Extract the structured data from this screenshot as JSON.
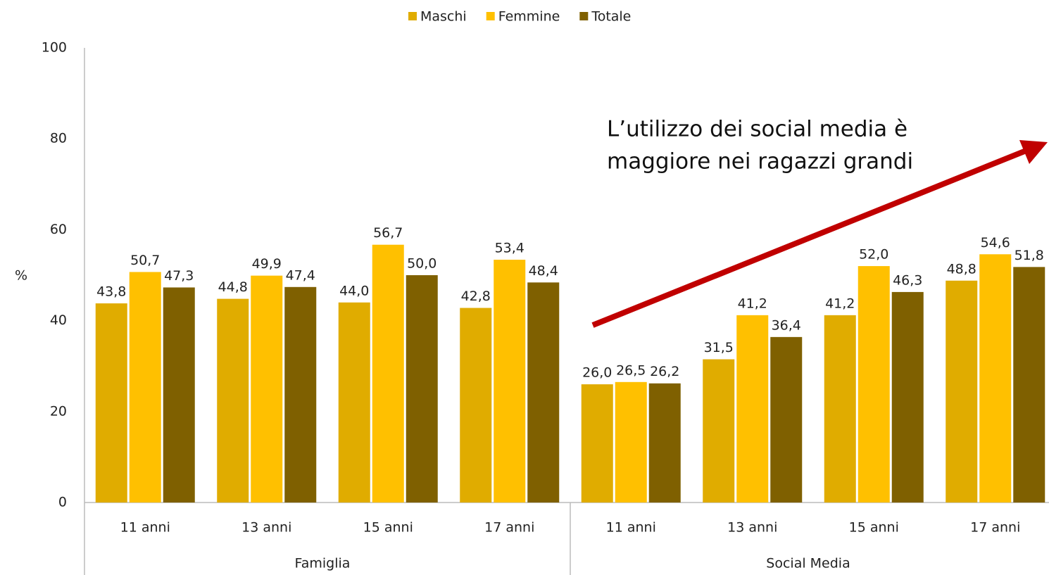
{
  "chart_data": {
    "type": "bar",
    "categories": [
      "11 anni",
      "13 anni",
      "15 anni",
      "17 anni",
      "11 anni",
      "13 anni",
      "15 anni",
      "17 anni"
    ],
    "group_labels": [
      "Famiglia",
      "Social Media"
    ],
    "y_label": "%",
    "series": [
      {
        "name": "Maschi",
        "color": "#E0AC00",
        "values": [
          43.8,
          44.8,
          44.0,
          42.8,
          26.0,
          31.5,
          41.2,
          48.8
        ],
        "value_labels": [
          "43,8",
          "44,8",
          "44,0",
          "42,8",
          "26,0",
          "31,5",
          "41,2",
          "48,8"
        ]
      },
      {
        "name": "Femmine",
        "color": "#FFC000",
        "values": [
          50.7,
          49.9,
          56.7,
          53.4,
          26.5,
          41.2,
          52.0,
          54.6
        ],
        "value_labels": [
          "50,7",
          "49,9",
          "56,7",
          "53,4",
          "26,5",
          "41,2",
          "52,0",
          "54,6"
        ]
      },
      {
        "name": "Totale",
        "color": "#7F6000",
        "values": [
          47.3,
          47.4,
          50.0,
          48.4,
          26.2,
          36.4,
          46.3,
          51.8
        ],
        "value_labels": [
          "47,3",
          "47,4",
          "50,0",
          "48,4",
          "26,2",
          "36,4",
          "46,3",
          "51,8"
        ]
      }
    ],
    "ylim": [
      0,
      100
    ],
    "yticks": [
      0,
      20,
      40,
      60,
      80,
      100
    ],
    "grid": false,
    "legend": "top",
    "annotation": {
      "lines": [
        "L’utilizzo dei social media è",
        "maggiore nei ragazzi grandi"
      ],
      "color": "#C00000"
    }
  }
}
